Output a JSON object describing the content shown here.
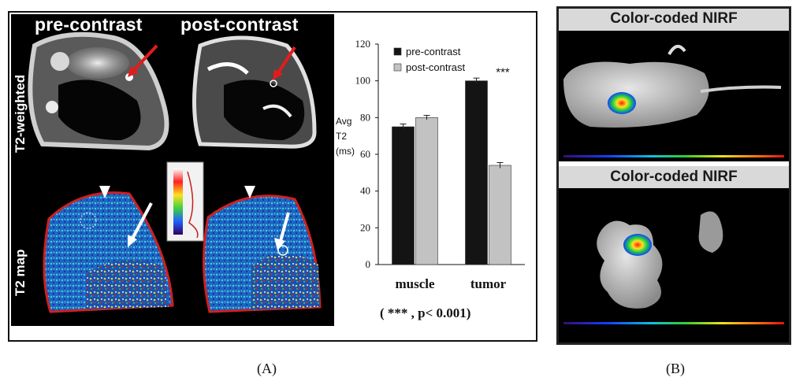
{
  "panel_a": {
    "col_pre": "pre-contrast",
    "col_post": "post-contrast",
    "row_t2w": "T2-weighted",
    "row_map": "T2 map",
    "pvalue_note": "( *** , p< 0.001)"
  },
  "panel_b": {
    "title_top": "Color-coded NIRF",
    "title_bottom": "Color-coded NIRF"
  },
  "captions": {
    "a": "(A)",
    "b": "(B)"
  },
  "colors": {
    "pre": "#141414",
    "post": "#c2c2c2",
    "axis": "#111111"
  },
  "chart_data": {
    "type": "bar",
    "categories": [
      "muscle",
      "tumor"
    ],
    "series": [
      {
        "name": "pre-contrast",
        "values": [
          75,
          100
        ],
        "errors": [
          1.5,
          1.5
        ]
      },
      {
        "name": "post-contrast",
        "values": [
          80,
          54
        ],
        "errors": [
          1.2,
          1.5
        ]
      }
    ],
    "ylabel_lines": [
      "Avg",
      "T2",
      "(ms)"
    ],
    "ylim": [
      0,
      120
    ],
    "yticks": [
      0,
      20,
      40,
      60,
      80,
      100,
      120
    ],
    "significance": "***",
    "legend_position": "top"
  }
}
